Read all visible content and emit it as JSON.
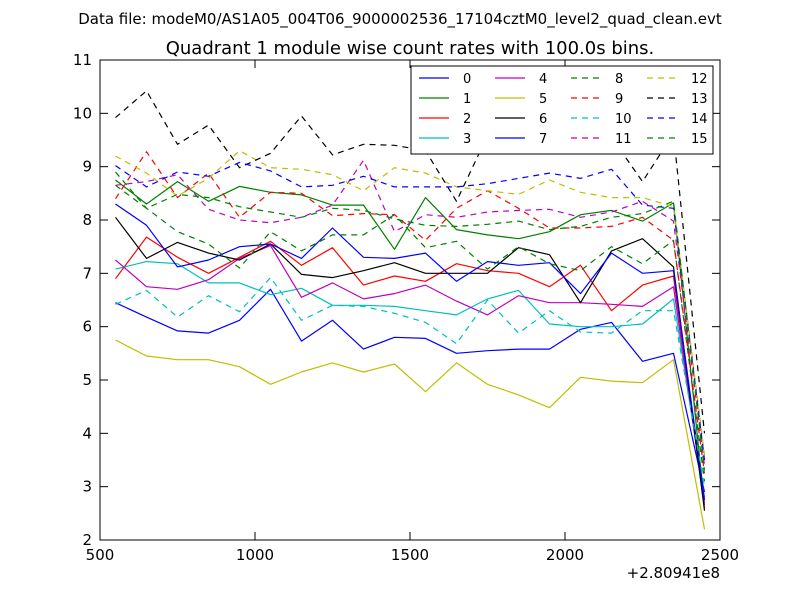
{
  "figure": {
    "suptitle": "Data file: modeM0/AS1A05_004T06_9000002536_17104cztM0_level2_quad_clean.evt"
  },
  "chart_data": {
    "type": "line",
    "title": "Quadrant 1 module wise count rates with 100.0s bins.",
    "xlabel": "",
    "ylabel": "",
    "x_offset_label": "+2.80941e8",
    "xlim": [
      500,
      2500
    ],
    "ylim": [
      2,
      11
    ],
    "xticks": [
      500,
      1000,
      1500,
      2000,
      2500
    ],
    "yticks": [
      2,
      3,
      4,
      5,
      6,
      7,
      8,
      9,
      10,
      11
    ],
    "x_ticklabels": [
      "500",
      "1000",
      "1500",
      "2000",
      "2500"
    ],
    "y_ticklabels": [
      "2",
      "3",
      "4",
      "5",
      "6",
      "7",
      "8",
      "9",
      "10",
      "11"
    ],
    "grid": false,
    "legend_position": "top-right",
    "legend_columns": 4,
    "x": [
      550,
      650,
      750,
      850,
      950,
      1050,
      1150,
      1250,
      1350,
      1450,
      1550,
      1650,
      1750,
      1850,
      1950,
      2050,
      2150,
      2250,
      2350,
      2450
    ],
    "series": [
      {
        "name": "0",
        "color": "#0000ff",
        "dash": "solid",
        "values": [
          6.45,
          6.18,
          5.92,
          5.88,
          6.12,
          6.7,
          5.73,
          6.12,
          5.58,
          5.8,
          5.78,
          5.5,
          5.55,
          5.58,
          5.58,
          5.95,
          6.08,
          5.35,
          5.5,
          2.9
        ]
      },
      {
        "name": "1",
        "color": "#008000",
        "dash": "solid",
        "values": [
          8.75,
          8.3,
          8.72,
          8.35,
          8.63,
          8.52,
          8.47,
          8.28,
          8.28,
          7.45,
          8.42,
          7.82,
          7.72,
          7.65,
          7.78,
          8.1,
          8.18,
          7.98,
          8.32,
          2.65
        ]
      },
      {
        "name": "2",
        "color": "#ff0000",
        "dash": "solid",
        "values": [
          6.9,
          7.68,
          7.3,
          7.0,
          7.3,
          7.6,
          7.15,
          7.48,
          6.78,
          6.95,
          6.85,
          7.18,
          7.05,
          7.0,
          6.75,
          7.15,
          6.3,
          6.78,
          6.95,
          2.6
        ]
      },
      {
        "name": "3",
        "color": "#00bfbf",
        "dash": "solid",
        "values": [
          7.08,
          7.22,
          7.18,
          6.82,
          6.82,
          6.6,
          6.72,
          6.4,
          6.4,
          6.38,
          6.3,
          6.22,
          6.52,
          6.68,
          6.05,
          6.0,
          6.0,
          6.05,
          6.52,
          2.8
        ]
      },
      {
        "name": "4",
        "color": "#bf00bf",
        "dash": "solid",
        "values": [
          7.25,
          6.75,
          6.7,
          6.88,
          7.28,
          7.52,
          6.55,
          6.82,
          6.52,
          6.62,
          6.78,
          6.48,
          6.22,
          6.58,
          6.45,
          6.45,
          6.42,
          6.38,
          6.75,
          2.7
        ]
      },
      {
        "name": "5",
        "color": "#bfbf00",
        "dash": "solid",
        "values": [
          5.75,
          5.45,
          5.38,
          5.38,
          5.25,
          4.92,
          5.15,
          5.32,
          5.15,
          5.3,
          4.78,
          5.32,
          4.92,
          4.72,
          4.48,
          5.05,
          4.98,
          4.95,
          5.38,
          2.2
        ]
      },
      {
        "name": "6",
        "color": "#000000",
        "dash": "solid",
        "values": [
          8.05,
          7.28,
          7.58,
          7.38,
          7.25,
          7.55,
          6.98,
          6.92,
          7.05,
          7.2,
          7.0,
          7.0,
          7.0,
          7.48,
          7.35,
          6.45,
          7.42,
          7.65,
          7.12,
          2.55
        ]
      },
      {
        "name": "7",
        "color": "#0000ff",
        "dash": "solid",
        "values": [
          8.3,
          7.9,
          7.12,
          7.25,
          7.5,
          7.55,
          7.28,
          7.85,
          7.3,
          7.28,
          7.38,
          6.85,
          7.22,
          7.15,
          7.2,
          6.62,
          7.38,
          7.0,
          7.05,
          2.75
        ]
      },
      {
        "name": "8",
        "color": "#008000",
        "dash": "dashed",
        "values": [
          8.9,
          8.22,
          7.78,
          7.55,
          7.1,
          7.78,
          7.42,
          7.72,
          7.72,
          8.1,
          7.48,
          7.6,
          7.08,
          7.5,
          7.18,
          7.05,
          7.5,
          7.18,
          7.62,
          3.1
        ]
      },
      {
        "name": "9",
        "color": "#ff0000",
        "dash": "dashed",
        "values": [
          8.4,
          9.28,
          8.42,
          8.88,
          8.05,
          8.52,
          8.5,
          8.08,
          8.12,
          8.1,
          7.62,
          8.22,
          8.55,
          8.22,
          7.85,
          7.85,
          7.88,
          8.05,
          7.62,
          3.25
        ]
      },
      {
        "name": "10",
        "color": "#00bfbf",
        "dash": "dashed",
        "values": [
          6.42,
          6.68,
          6.18,
          6.58,
          6.28,
          6.92,
          6.12,
          6.4,
          6.38,
          6.25,
          6.08,
          5.68,
          6.5,
          5.88,
          6.3,
          5.9,
          5.88,
          6.3,
          6.3,
          3.0
        ]
      },
      {
        "name": "11",
        "color": "#bf00bf",
        "dash": "dashed",
        "values": [
          8.65,
          8.72,
          8.85,
          8.2,
          8.0,
          7.95,
          8.05,
          8.28,
          9.12,
          7.78,
          8.1,
          8.05,
          8.15,
          8.18,
          8.2,
          8.05,
          8.15,
          8.35,
          7.98,
          3.4
        ]
      },
      {
        "name": "12",
        "color": "#bfbf00",
        "dash": "dashed",
        "values": [
          9.2,
          8.88,
          8.45,
          8.78,
          9.3,
          8.98,
          8.95,
          8.85,
          8.55,
          8.98,
          8.88,
          8.62,
          8.55,
          8.48,
          8.75,
          8.52,
          8.42,
          8.42,
          8.25,
          3.6
        ]
      },
      {
        "name": "13",
        "color": "#000000",
        "dash": "dashed",
        "values": [
          9.92,
          10.42,
          9.42,
          9.78,
          8.98,
          9.25,
          9.95,
          9.22,
          9.42,
          9.4,
          9.3,
          8.35,
          9.58,
          9.65,
          9.4,
          9.45,
          9.55,
          8.72,
          9.62,
          4.0
        ]
      },
      {
        "name": "14",
        "color": "#0000ff",
        "dash": "dashed",
        "values": [
          9.02,
          8.62,
          8.9,
          8.82,
          9.08,
          8.92,
          8.62,
          8.65,
          8.82,
          8.62,
          8.62,
          8.62,
          8.68,
          8.78,
          8.88,
          8.78,
          8.95,
          8.28,
          8.22,
          3.5
        ]
      },
      {
        "name": "15",
        "color": "#008000",
        "dash": "dashed",
        "values": [
          8.65,
          8.22,
          8.48,
          8.42,
          8.25,
          8.15,
          8.05,
          8.22,
          8.18,
          8.02,
          7.9,
          7.88,
          7.92,
          7.98,
          7.82,
          7.88,
          8.05,
          8.12,
          8.35,
          3.3
        ]
      }
    ]
  }
}
